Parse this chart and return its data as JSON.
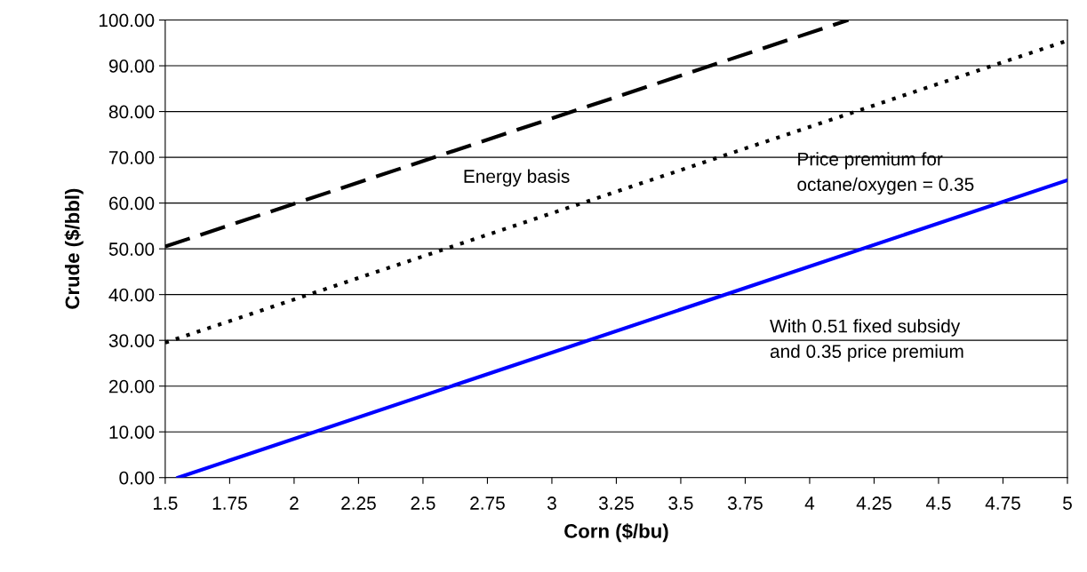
{
  "chart_data": {
    "type": "line",
    "xlabel": "Corn ($/bu)",
    "ylabel": "Crude ($/bbl)",
    "series": [
      {
        "color": "#000000",
        "line_style": "dashed",
        "x": [
          1.5,
          4.15
        ],
        "values": [
          50.5,
          100
        ]
      },
      {
        "color": "#000000",
        "line_style": "dotted",
        "x": [
          1.5,
          5
        ],
        "values": [
          29.5,
          95.5
        ]
      },
      {
        "color": "#0000ff",
        "line_style": "solid",
        "x": [
          1.55,
          5
        ],
        "values": [
          0,
          65
        ]
      }
    ],
    "annotations": [
      "Energy basis",
      "Price premium for\noctane/oxygen = 0.35",
      "With 0.51 fixed subsidy\nand 0.35 price premium"
    ],
    "xlim": [
      1.5,
      5
    ],
    "xticks": [
      1.5,
      1.75,
      2,
      2.25,
      2.5,
      2.75,
      3,
      3.25,
      3.5,
      3.75,
      4,
      4.25,
      4.5,
      4.75,
      5
    ],
    "ylim": [
      0,
      100
    ],
    "yticks": [
      {
        "value": 0,
        "label": "0.00"
      },
      {
        "value": 10,
        "label": "10.00"
      },
      {
        "value": 20,
        "label": "20.00"
      },
      {
        "value": 30,
        "label": "30.00"
      },
      {
        "value": 40,
        "label": "40.00"
      },
      {
        "value": 50,
        "label": "50.00"
      },
      {
        "value": 60,
        "label": "60.00"
      },
      {
        "value": 70,
        "label": "70.00"
      },
      {
        "value": 80,
        "label": "80.00"
      },
      {
        "value": 90,
        "label": "90.00"
      },
      {
        "value": 100,
        "label": "100.00"
      }
    ],
    "grid": "y",
    "marker": "none",
    "legend": false
  }
}
